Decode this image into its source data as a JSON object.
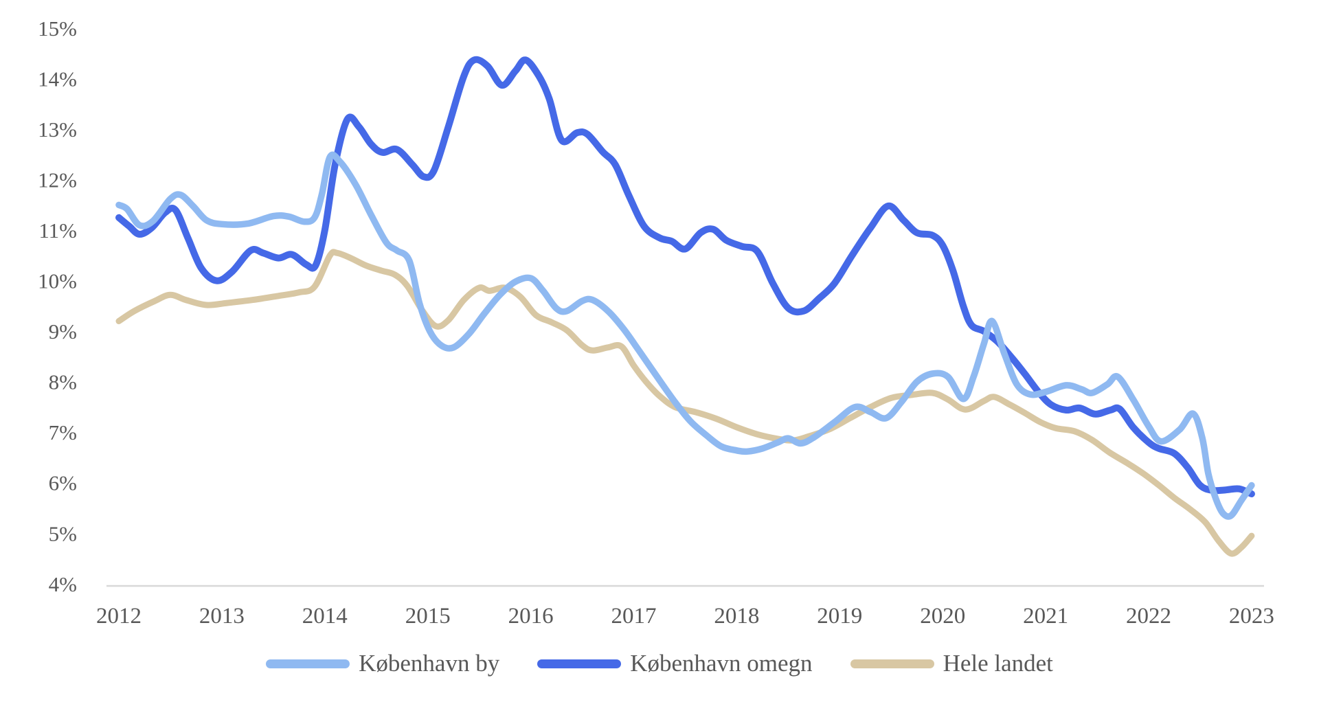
{
  "page": {
    "background": "#ffffff"
  },
  "chart_data": {
    "type": "line",
    "title": "",
    "xlabel": "",
    "ylabel": "",
    "grid": false,
    "legend_position": "bottom-center",
    "style": {
      "axis_line_color": "#D8D8D8",
      "label_color": "#585858",
      "y_tick_suffix": "%"
    },
    "x_axis": {
      "ticks": [
        2012,
        2013,
        2014,
        2015,
        2016,
        2017,
        2018,
        2019,
        2020,
        2021,
        2022,
        2023
      ],
      "range": [
        2012,
        2023
      ]
    },
    "y_axis": {
      "ticks": [
        15,
        14,
        13,
        12,
        11,
        10,
        9,
        8,
        7,
        6,
        5,
        4
      ],
      "range": [
        4,
        15
      ]
    },
    "series": [
      {
        "name": "København by",
        "color": "#8FB9F1",
        "stroke_width": 9.5,
        "points": [
          [
            2012.0,
            11.5
          ],
          [
            2012.08,
            11.42
          ],
          [
            2012.2,
            11.1
          ],
          [
            2012.33,
            11.18
          ],
          [
            2012.5,
            11.62
          ],
          [
            2012.6,
            11.7
          ],
          [
            2012.72,
            11.48
          ],
          [
            2012.85,
            11.2
          ],
          [
            2013.0,
            11.12
          ],
          [
            2013.25,
            11.13
          ],
          [
            2013.5,
            11.28
          ],
          [
            2013.65,
            11.27
          ],
          [
            2013.8,
            11.17
          ],
          [
            2013.9,
            11.25
          ],
          [
            2013.97,
            11.7
          ],
          [
            2014.05,
            12.45
          ],
          [
            2014.15,
            12.35
          ],
          [
            2014.3,
            11.9
          ],
          [
            2014.45,
            11.3
          ],
          [
            2014.6,
            10.75
          ],
          [
            2014.7,
            10.6
          ],
          [
            2014.82,
            10.4
          ],
          [
            2014.92,
            9.55
          ],
          [
            2015.02,
            9.0
          ],
          [
            2015.13,
            8.72
          ],
          [
            2015.25,
            8.68
          ],
          [
            2015.4,
            8.95
          ],
          [
            2015.55,
            9.35
          ],
          [
            2015.7,
            9.72
          ],
          [
            2015.85,
            9.98
          ],
          [
            2016.0,
            10.05
          ],
          [
            2016.12,
            9.8
          ],
          [
            2016.25,
            9.45
          ],
          [
            2016.35,
            9.4
          ],
          [
            2016.5,
            9.6
          ],
          [
            2016.6,
            9.62
          ],
          [
            2016.75,
            9.4
          ],
          [
            2016.9,
            9.05
          ],
          [
            2017.05,
            8.62
          ],
          [
            2017.22,
            8.12
          ],
          [
            2017.4,
            7.6
          ],
          [
            2017.55,
            7.22
          ],
          [
            2017.7,
            6.95
          ],
          [
            2017.85,
            6.72
          ],
          [
            2018.0,
            6.64
          ],
          [
            2018.1,
            6.62
          ],
          [
            2018.25,
            6.68
          ],
          [
            2018.4,
            6.8
          ],
          [
            2018.5,
            6.88
          ],
          [
            2018.62,
            6.78
          ],
          [
            2018.75,
            6.9
          ],
          [
            2018.95,
            7.2
          ],
          [
            2019.15,
            7.5
          ],
          [
            2019.3,
            7.4
          ],
          [
            2019.45,
            7.28
          ],
          [
            2019.6,
            7.6
          ],
          [
            2019.75,
            8.0
          ],
          [
            2019.9,
            8.16
          ],
          [
            2020.05,
            8.1
          ],
          [
            2020.2,
            7.66
          ],
          [
            2020.3,
            8.1
          ],
          [
            2020.4,
            8.75
          ],
          [
            2020.48,
            9.2
          ],
          [
            2020.6,
            8.55
          ],
          [
            2020.72,
            7.95
          ],
          [
            2020.85,
            7.75
          ],
          [
            2021.0,
            7.8
          ],
          [
            2021.2,
            7.93
          ],
          [
            2021.35,
            7.85
          ],
          [
            2021.45,
            7.78
          ],
          [
            2021.6,
            7.95
          ],
          [
            2021.7,
            8.1
          ],
          [
            2021.85,
            7.65
          ],
          [
            2022.0,
            7.12
          ],
          [
            2022.12,
            6.82
          ],
          [
            2022.3,
            7.05
          ],
          [
            2022.43,
            7.37
          ],
          [
            2022.52,
            6.9
          ],
          [
            2022.58,
            6.18
          ],
          [
            2022.65,
            5.7
          ],
          [
            2022.72,
            5.4
          ],
          [
            2022.8,
            5.35
          ],
          [
            2022.9,
            5.65
          ],
          [
            2023.0,
            5.95
          ]
        ]
      },
      {
        "name": "København omegn",
        "color": "#4569E7",
        "stroke_width": 10,
        "points": [
          [
            2012.0,
            11.25
          ],
          [
            2012.1,
            11.08
          ],
          [
            2012.2,
            10.92
          ],
          [
            2012.32,
            11.05
          ],
          [
            2012.45,
            11.35
          ],
          [
            2012.55,
            11.4
          ],
          [
            2012.67,
            10.85
          ],
          [
            2012.8,
            10.25
          ],
          [
            2012.95,
            10.0
          ],
          [
            2013.1,
            10.18
          ],
          [
            2013.28,
            10.6
          ],
          [
            2013.4,
            10.55
          ],
          [
            2013.55,
            10.45
          ],
          [
            2013.68,
            10.52
          ],
          [
            2013.82,
            10.32
          ],
          [
            2013.91,
            10.3
          ],
          [
            2014.0,
            11.0
          ],
          [
            2014.1,
            12.3
          ],
          [
            2014.22,
            13.2
          ],
          [
            2014.33,
            13.05
          ],
          [
            2014.45,
            12.7
          ],
          [
            2014.56,
            12.54
          ],
          [
            2014.7,
            12.6
          ],
          [
            2014.85,
            12.3
          ],
          [
            2014.96,
            12.06
          ],
          [
            2015.06,
            12.18
          ],
          [
            2015.2,
            13.05
          ],
          [
            2015.35,
            14.05
          ],
          [
            2015.45,
            14.37
          ],
          [
            2015.58,
            14.25
          ],
          [
            2015.72,
            13.87
          ],
          [
            2015.85,
            14.15
          ],
          [
            2015.95,
            14.37
          ],
          [
            2016.08,
            14.05
          ],
          [
            2016.18,
            13.6
          ],
          [
            2016.3,
            12.78
          ],
          [
            2016.45,
            12.93
          ],
          [
            2016.55,
            12.9
          ],
          [
            2016.7,
            12.55
          ],
          [
            2016.82,
            12.3
          ],
          [
            2016.95,
            11.7
          ],
          [
            2017.1,
            11.08
          ],
          [
            2017.25,
            10.85
          ],
          [
            2017.37,
            10.78
          ],
          [
            2017.5,
            10.63
          ],
          [
            2017.65,
            10.95
          ],
          [
            2017.77,
            11.02
          ],
          [
            2017.9,
            10.8
          ],
          [
            2018.05,
            10.68
          ],
          [
            2018.2,
            10.58
          ],
          [
            2018.35,
            9.95
          ],
          [
            2018.5,
            9.46
          ],
          [
            2018.65,
            9.4
          ],
          [
            2018.8,
            9.65
          ],
          [
            2018.95,
            9.95
          ],
          [
            2019.12,
            10.5
          ],
          [
            2019.3,
            11.05
          ],
          [
            2019.47,
            11.48
          ],
          [
            2019.62,
            11.2
          ],
          [
            2019.75,
            10.95
          ],
          [
            2019.9,
            10.9
          ],
          [
            2020.0,
            10.7
          ],
          [
            2020.1,
            10.2
          ],
          [
            2020.2,
            9.5
          ],
          [
            2020.28,
            9.12
          ],
          [
            2020.4,
            9.0
          ],
          [
            2020.53,
            8.8
          ],
          [
            2020.67,
            8.48
          ],
          [
            2020.8,
            8.15
          ],
          [
            2020.93,
            7.8
          ],
          [
            2021.05,
            7.55
          ],
          [
            2021.2,
            7.44
          ],
          [
            2021.33,
            7.48
          ],
          [
            2021.48,
            7.36
          ],
          [
            2021.63,
            7.44
          ],
          [
            2021.72,
            7.46
          ],
          [
            2021.85,
            7.1
          ],
          [
            2022.0,
            6.8
          ],
          [
            2022.1,
            6.68
          ],
          [
            2022.25,
            6.58
          ],
          [
            2022.38,
            6.3
          ],
          [
            2022.5,
            5.95
          ],
          [
            2022.62,
            5.85
          ],
          [
            2022.75,
            5.86
          ],
          [
            2022.88,
            5.88
          ],
          [
            2023.0,
            5.78
          ]
        ]
      },
      {
        "name": "Hele landet",
        "color": "#D8C7A3",
        "stroke_width": 9,
        "points": [
          [
            2012.0,
            9.2
          ],
          [
            2012.15,
            9.4
          ],
          [
            2012.35,
            9.6
          ],
          [
            2012.5,
            9.72
          ],
          [
            2012.65,
            9.62
          ],
          [
            2012.85,
            9.52
          ],
          [
            2013.05,
            9.56
          ],
          [
            2013.3,
            9.62
          ],
          [
            2013.55,
            9.7
          ],
          [
            2013.75,
            9.77
          ],
          [
            2013.9,
            9.88
          ],
          [
            2014.05,
            10.5
          ],
          [
            2014.12,
            10.55
          ],
          [
            2014.25,
            10.45
          ],
          [
            2014.4,
            10.3
          ],
          [
            2014.55,
            10.2
          ],
          [
            2014.68,
            10.12
          ],
          [
            2014.8,
            9.9
          ],
          [
            2014.95,
            9.4
          ],
          [
            2015.08,
            9.1
          ],
          [
            2015.2,
            9.22
          ],
          [
            2015.35,
            9.62
          ],
          [
            2015.5,
            9.86
          ],
          [
            2015.6,
            9.8
          ],
          [
            2015.75,
            9.86
          ],
          [
            2015.9,
            9.68
          ],
          [
            2016.05,
            9.32
          ],
          [
            2016.2,
            9.18
          ],
          [
            2016.35,
            9.02
          ],
          [
            2016.5,
            8.72
          ],
          [
            2016.6,
            8.62
          ],
          [
            2016.75,
            8.68
          ],
          [
            2016.88,
            8.7
          ],
          [
            2017.0,
            8.32
          ],
          [
            2017.12,
            8.0
          ],
          [
            2017.25,
            7.72
          ],
          [
            2017.4,
            7.5
          ],
          [
            2017.6,
            7.4
          ],
          [
            2017.8,
            7.27
          ],
          [
            2018.0,
            7.1
          ],
          [
            2018.2,
            6.96
          ],
          [
            2018.4,
            6.87
          ],
          [
            2018.55,
            6.84
          ],
          [
            2018.7,
            6.92
          ],
          [
            2018.9,
            7.06
          ],
          [
            2019.1,
            7.28
          ],
          [
            2019.3,
            7.5
          ],
          [
            2019.5,
            7.68
          ],
          [
            2019.7,
            7.74
          ],
          [
            2019.9,
            7.78
          ],
          [
            2020.05,
            7.65
          ],
          [
            2020.22,
            7.45
          ],
          [
            2020.4,
            7.62
          ],
          [
            2020.5,
            7.7
          ],
          [
            2020.65,
            7.55
          ],
          [
            2020.8,
            7.38
          ],
          [
            2020.95,
            7.2
          ],
          [
            2021.1,
            7.08
          ],
          [
            2021.28,
            7.02
          ],
          [
            2021.45,
            6.85
          ],
          [
            2021.62,
            6.6
          ],
          [
            2021.8,
            6.38
          ],
          [
            2021.95,
            6.18
          ],
          [
            2022.1,
            5.95
          ],
          [
            2022.25,
            5.7
          ],
          [
            2022.4,
            5.48
          ],
          [
            2022.55,
            5.22
          ],
          [
            2022.68,
            4.85
          ],
          [
            2022.8,
            4.6
          ],
          [
            2022.9,
            4.72
          ],
          [
            2023.0,
            4.95
          ]
        ]
      }
    ]
  }
}
